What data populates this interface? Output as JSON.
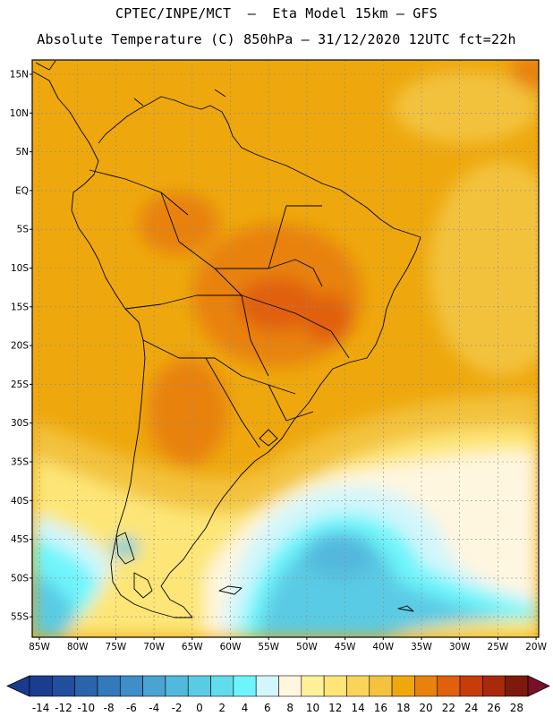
{
  "header": {
    "line1": "CPTEC/INPE/MCT  –  Eta Model 15km – GFS",
    "line2": "Absolute Temperature (C) 850hPa – 31/12/2020 12UTC fct=22h"
  },
  "axes": {
    "lat_labels": [
      "15N",
      "10N",
      "5N",
      "EQ",
      "5S",
      "10S",
      "15S",
      "20S",
      "25S",
      "30S",
      "35S",
      "40S",
      "45S",
      "50S",
      "55S"
    ],
    "lon_labels": [
      "85W",
      "80W",
      "75W",
      "70W",
      "65W",
      "60W",
      "55W",
      "50W",
      "45W",
      "40W",
      "35W",
      "30W",
      "25W",
      "20W"
    ]
  },
  "colorbar": {
    "labels": [
      "-14",
      "-12",
      "-10",
      "-8",
      "-6",
      "-4",
      "-2",
      "0",
      "2",
      "4",
      "6",
      "8",
      "10",
      "12",
      "14",
      "16",
      "18",
      "20",
      "22",
      "24",
      "26",
      "28"
    ],
    "colors": [
      "#1a3d8f",
      "#214f9e",
      "#2a64ac",
      "#3479ba",
      "#3f8ec7",
      "#4aa3d3",
      "#52b8dc",
      "#5acbe4",
      "#61dcea",
      "#6ef5fb",
      "#d2f6fb",
      "#fff6df",
      "#fff199",
      "#fde677",
      "#f8d55a",
      "#f3c23e",
      "#eea80d",
      "#e8820c",
      "#e0600b",
      "#c63d0a",
      "#a82a0b",
      "#7e1a0c"
    ],
    "end_colors": {
      "low": "#1a3a8c",
      "high": "#7a0f28"
    }
  }
}
